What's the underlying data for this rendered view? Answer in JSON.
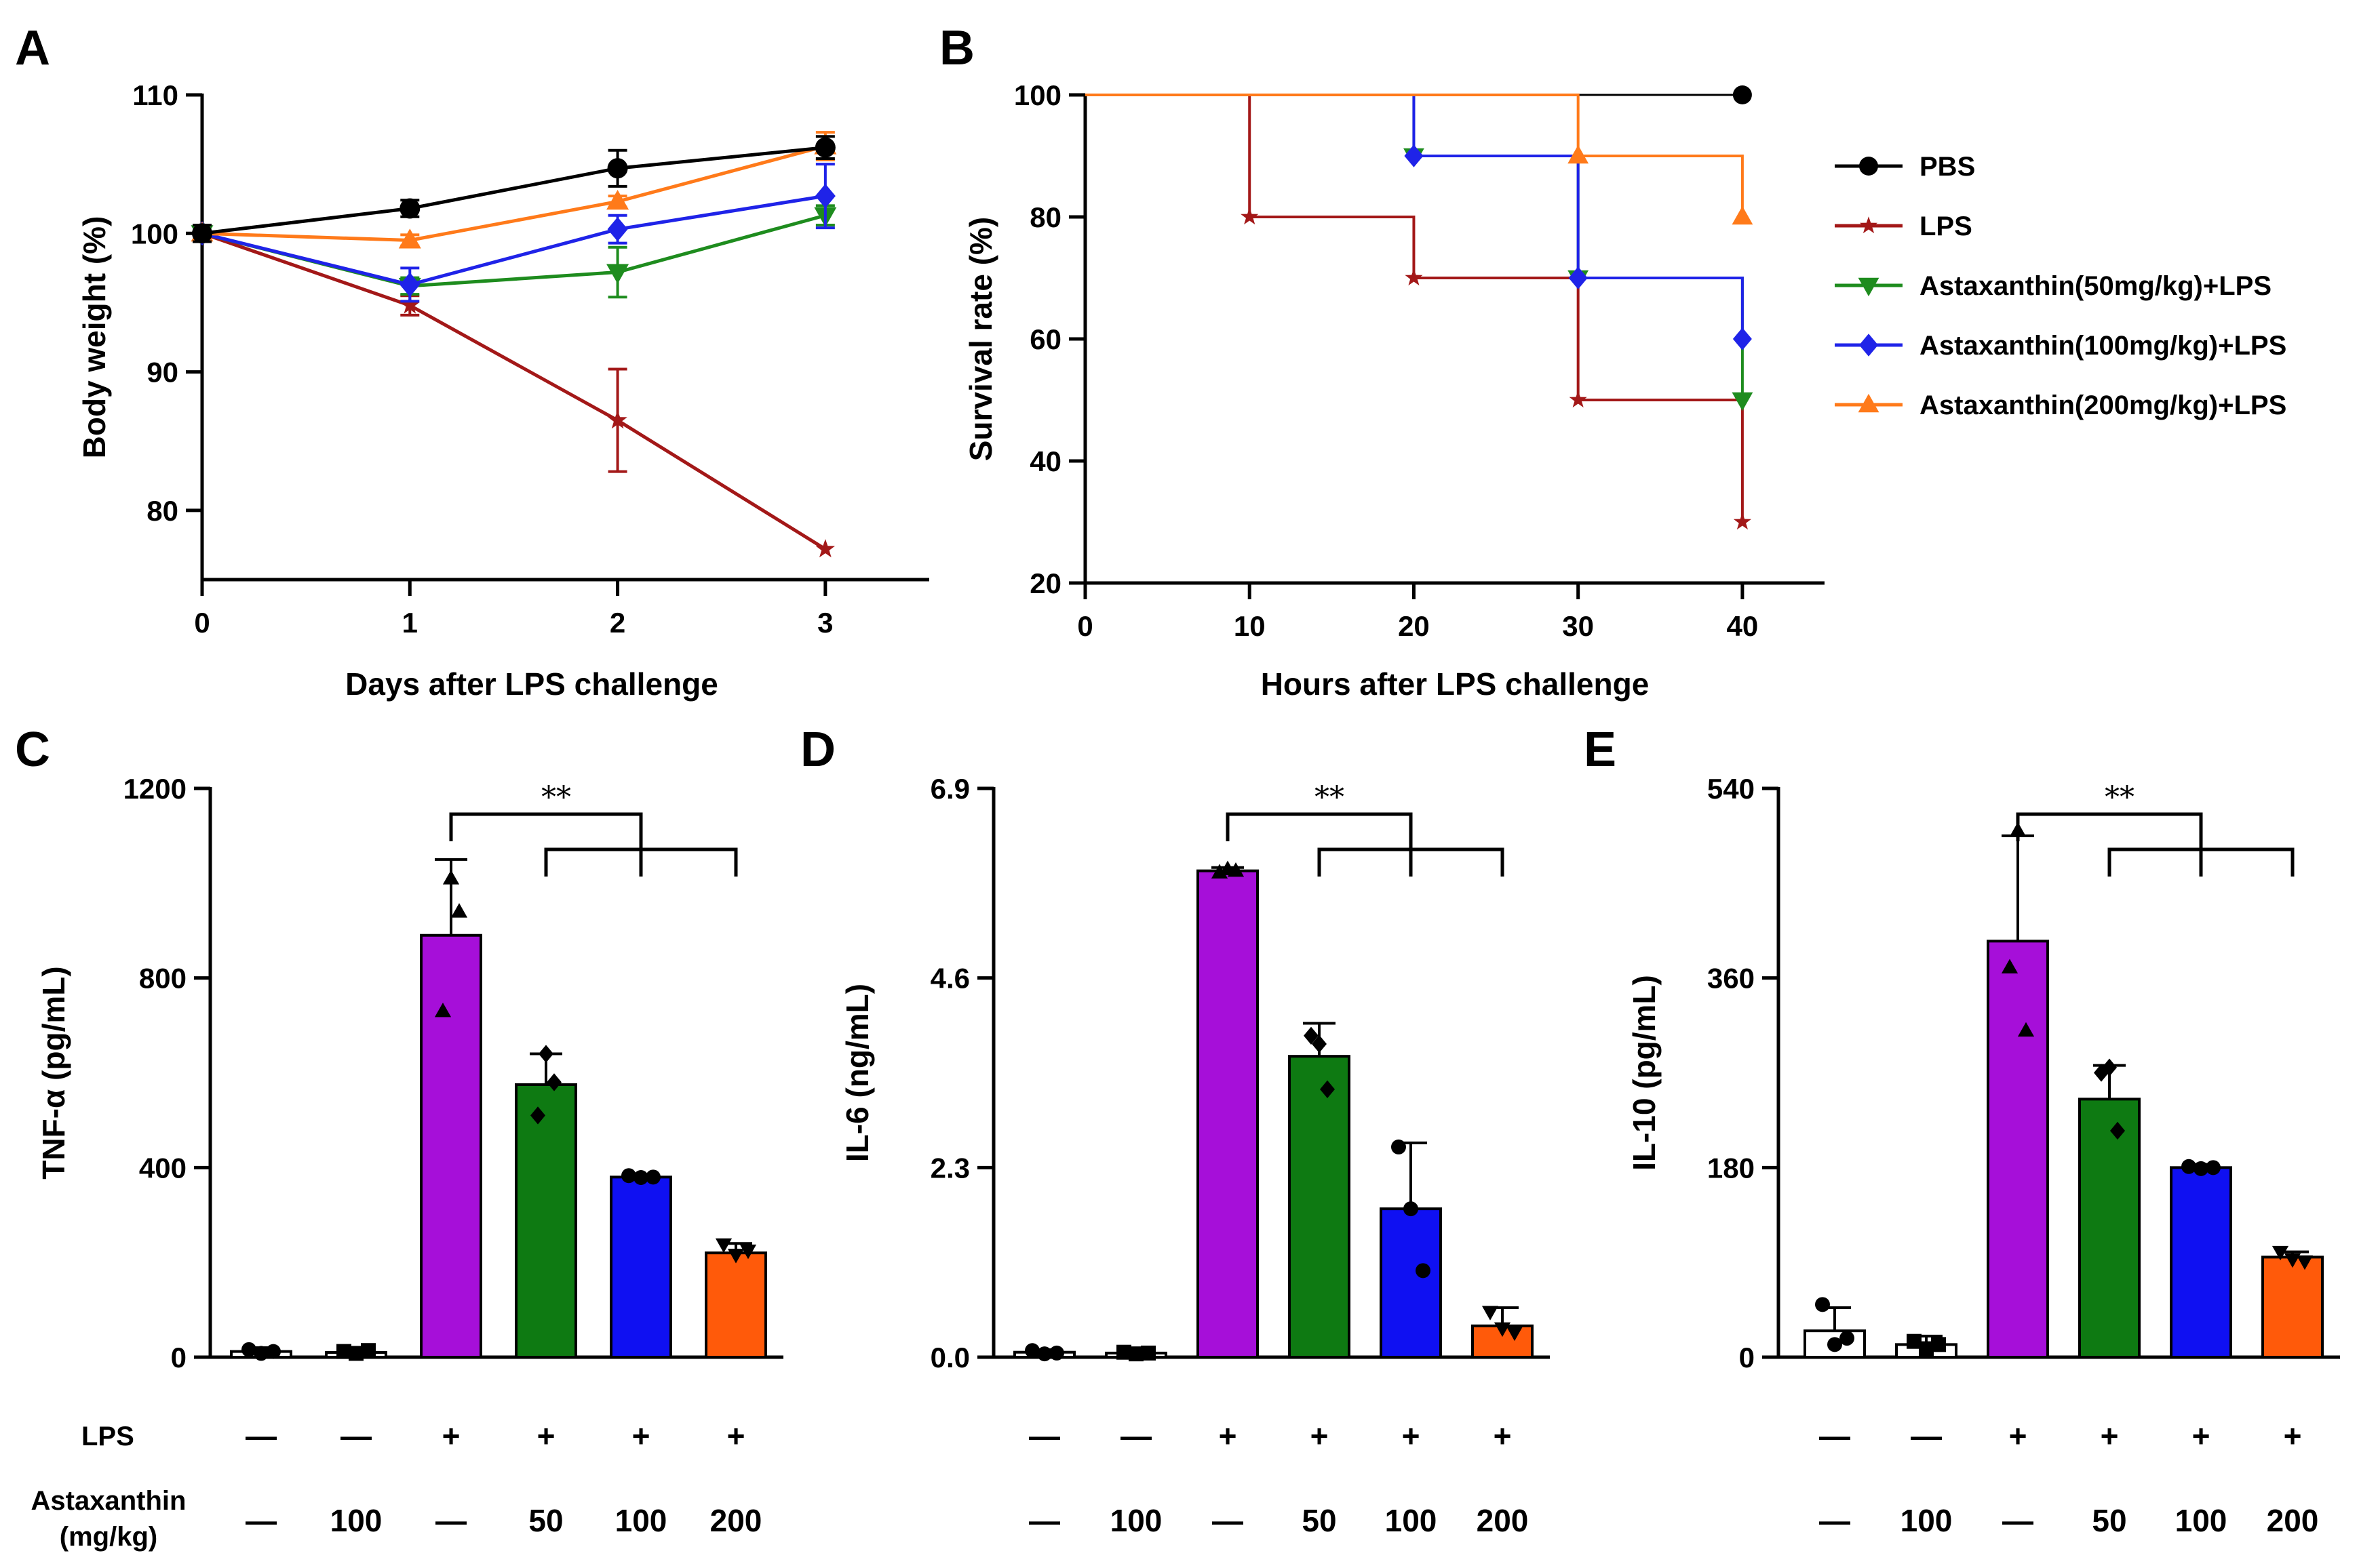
{
  "chart_data": [
    {
      "panel": "A",
      "type": "line",
      "xlabel": "Days after LPS challenge",
      "ylabel": "Body weight (%)",
      "x": [
        0,
        1,
        2,
        3
      ],
      "xlim": [
        0,
        3.5
      ],
      "ylim": [
        75,
        110
      ],
      "yticks": [
        80,
        90,
        100,
        110
      ],
      "xticks": [
        0,
        1,
        2,
        3
      ],
      "series": [
        {
          "key": "pbs",
          "values": [
            100,
            101.8,
            104.7,
            106.2
          ],
          "err": [
            0.6,
            0.6,
            1.3,
            0.8
          ]
        },
        {
          "key": "lps",
          "values": [
            100,
            94.8,
            86.5,
            77.2
          ],
          "err": [
            0.6,
            0.7,
            3.7,
            0
          ]
        },
        {
          "key": "a50",
          "values": [
            100,
            96.2,
            97.2,
            101.3
          ],
          "err": [
            0.6,
            0.6,
            1.8,
            0.7
          ]
        },
        {
          "key": "a100",
          "values": [
            100,
            96.3,
            100.3,
            102.7
          ],
          "err": [
            0.6,
            1.2,
            1.0,
            2.3
          ]
        },
        {
          "key": "a200",
          "values": [
            100,
            99.5,
            102.3,
            106.3
          ],
          "err": [
            0.6,
            0.4,
            0.4,
            1.0
          ]
        }
      ]
    },
    {
      "panel": "B",
      "type": "line",
      "subtype": "step",
      "xlabel": "Hours after LPS challenge",
      "ylabel": "Survival rate (%)",
      "xlim": [
        0,
        45
      ],
      "ylim": [
        20,
        100
      ],
      "yticks": [
        20,
        40,
        60,
        80,
        100
      ],
      "xticks": [
        0,
        10,
        20,
        30,
        40
      ],
      "series": [
        {
          "key": "pbs",
          "steps": [
            [
              0,
              100
            ],
            [
              40,
              100
            ]
          ]
        },
        {
          "key": "lps",
          "steps": [
            [
              0,
              100
            ],
            [
              10,
              80
            ],
            [
              20,
              70
            ],
            [
              30,
              50
            ],
            [
              40,
              30
            ]
          ]
        },
        {
          "key": "a50",
          "steps": [
            [
              0,
              100
            ],
            [
              20,
              90
            ],
            [
              30,
              70
            ],
            [
              40,
              50
            ]
          ]
        },
        {
          "key": "a100",
          "steps": [
            [
              0,
              100
            ],
            [
              20,
              90
            ],
            [
              30,
              70
            ],
            [
              40,
              60
            ]
          ]
        },
        {
          "key": "a200",
          "steps": [
            [
              0,
              100
            ],
            [
              30,
              90
            ],
            [
              40,
              80
            ]
          ]
        }
      ]
    },
    {
      "panel": "C",
      "type": "bar",
      "ylabel": "TNF-α (pg/mL)",
      "ylim": [
        0,
        1200
      ],
      "yticks": [
        "0",
        "400",
        "800",
        "1200"
      ],
      "ytick_values": [
        0,
        400,
        800,
        1200
      ],
      "values": [
        12,
        10,
        890,
        575,
        380,
        220
      ],
      "err": [
        8,
        8,
        160,
        65,
        5,
        20
      ],
      "points": [
        [
          16,
          8,
          12
        ],
        [
          12,
          8,
          14
        ],
        [
          1010,
          730,
          940
        ],
        [
          640,
          510,
          580
        ],
        [
          383,
          379,
          380
        ],
        [
          238,
          216,
          225
        ]
      ],
      "point_shape": [
        "circle",
        "square",
        "triangle-up",
        "diamond",
        "circle",
        "triangle-down"
      ],
      "significance": "**"
    },
    {
      "panel": "D",
      "type": "bar",
      "ylabel": "IL-6 (ng/mL)",
      "ylim": [
        0,
        6.9
      ],
      "yticks": [
        "0.0",
        "2.3",
        "4.6",
        "6.9"
      ],
      "ytick_values": [
        0,
        2.3,
        4.6,
        6.9
      ],
      "values": [
        0.06,
        0.05,
        5.9,
        3.65,
        1.8,
        0.38
      ],
      "err": [
        0.03,
        0.03,
        0.04,
        0.4,
        0.8,
        0.22
      ],
      "points": [
        [
          0.08,
          0.04,
          0.05
        ],
        [
          0.06,
          0.04,
          0.05
        ],
        [
          5.92,
          5.88,
          5.9
        ],
        [
          3.8,
          3.9,
          3.25
        ],
        [
          2.55,
          1.8,
          1.05
        ],
        [
          0.55,
          0.35,
          0.3
        ]
      ],
      "point_shape": [
        "circle",
        "square",
        "triangle-up",
        "diamond",
        "circle",
        "triangle-down"
      ],
      "significance": "**"
    },
    {
      "panel": "E",
      "type": "bar",
      "ylabel": "IL-10 (pg/mL)",
      "ylim": [
        0,
        540
      ],
      "yticks": [
        "0",
        "180",
        "360",
        "540"
      ],
      "ytick_values": [
        0,
        180,
        360,
        540
      ],
      "values": [
        25,
        12,
        395,
        245,
        180,
        95
      ],
      "err": [
        22,
        8,
        100,
        32,
        3,
        5
      ],
      "points": [
        [
          50,
          12,
          18
        ],
        [
          15,
          8,
          12
        ],
        [
          500,
          370,
          310
        ],
        [
          275,
          270,
          215
        ],
        [
          181,
          179,
          180
        ],
        [
          100,
          93,
          91
        ]
      ],
      "point_shape": [
        "circle",
        "square",
        "triangle-up",
        "diamond",
        "circle",
        "triangle-down"
      ],
      "significance": "**"
    }
  ],
  "panel_letters": [
    "A",
    "B",
    "C",
    "D",
    "E"
  ],
  "legend": [
    {
      "key": "pbs",
      "label": "PBS",
      "color": "#000000",
      "marker": "circle"
    },
    {
      "key": "lps",
      "label": "LPS",
      "color": "#A31818",
      "marker": "star"
    },
    {
      "key": "a50",
      "label": "Astaxanthin(50mg/kg)+LPS",
      "color": "#1E8C1E",
      "marker": "triangle-down"
    },
    {
      "key": "a100",
      "label": "Astaxanthin(100mg/kg)+LPS",
      "color": "#1F23E8",
      "marker": "diamond"
    },
    {
      "key": "a200",
      "label": "Astaxanthin(200mg/kg)+LPS",
      "color": "#FF7A1A",
      "marker": "triangle-up"
    }
  ],
  "bar_colors": [
    "#FFFFFF",
    "#FFFFFF",
    "#A60FD9",
    "#0E7A12",
    "#0F10F2",
    "#FF5A0A"
  ],
  "treatment_rows": {
    "lps_label": "LPS",
    "astaxanthin_label_line1": "Astaxanthin",
    "astaxanthin_label_line2": "(mg/kg)",
    "lps": [
      "—",
      "—",
      "+",
      "+",
      "+",
      "+"
    ],
    "astaxanthin": [
      "—",
      "100",
      "—",
      "50",
      "100",
      "200"
    ]
  }
}
